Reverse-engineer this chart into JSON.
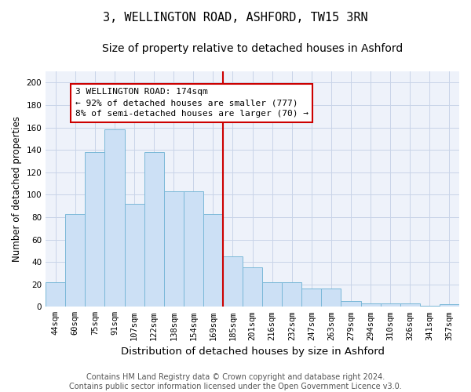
{
  "title": "3, WELLINGTON ROAD, ASHFORD, TW15 3RN",
  "subtitle": "Size of property relative to detached houses in Ashford",
  "xlabel": "Distribution of detached houses by size in Ashford",
  "ylabel": "Number of detached properties",
  "categories": [
    "44sqm",
    "60sqm",
    "75sqm",
    "91sqm",
    "107sqm",
    "122sqm",
    "138sqm",
    "154sqm",
    "169sqm",
    "185sqm",
    "201sqm",
    "216sqm",
    "232sqm",
    "247sqm",
    "263sqm",
    "279sqm",
    "294sqm",
    "310sqm",
    "326sqm",
    "341sqm",
    "357sqm"
  ],
  "values": [
    22,
    83,
    138,
    158,
    92,
    138,
    103,
    103,
    83,
    45,
    35,
    22,
    22,
    16,
    16,
    5,
    3,
    3,
    3,
    1,
    2
  ],
  "bar_color": "#cce0f5",
  "bar_edge_color": "#7ab8d8",
  "highlight_index": 8,
  "vline_color": "#cc0000",
  "annotation_text": "3 WELLINGTON ROAD: 174sqm\n← 92% of detached houses are smaller (777)\n8% of semi-detached houses are larger (70) →",
  "ylim": [
    0,
    210
  ],
  "yticks": [
    0,
    20,
    40,
    60,
    80,
    100,
    120,
    140,
    160,
    180,
    200
  ],
  "grid_color": "#c8d4e8",
  "background_color": "#eef2fa",
  "footer_text": "Contains HM Land Registry data © Crown copyright and database right 2024.\nContains public sector information licensed under the Open Government Licence v3.0.",
  "title_fontsize": 11,
  "subtitle_fontsize": 10,
  "xlabel_fontsize": 9.5,
  "ylabel_fontsize": 8.5,
  "tick_fontsize": 7.5,
  "annotation_fontsize": 8,
  "footer_fontsize": 7
}
